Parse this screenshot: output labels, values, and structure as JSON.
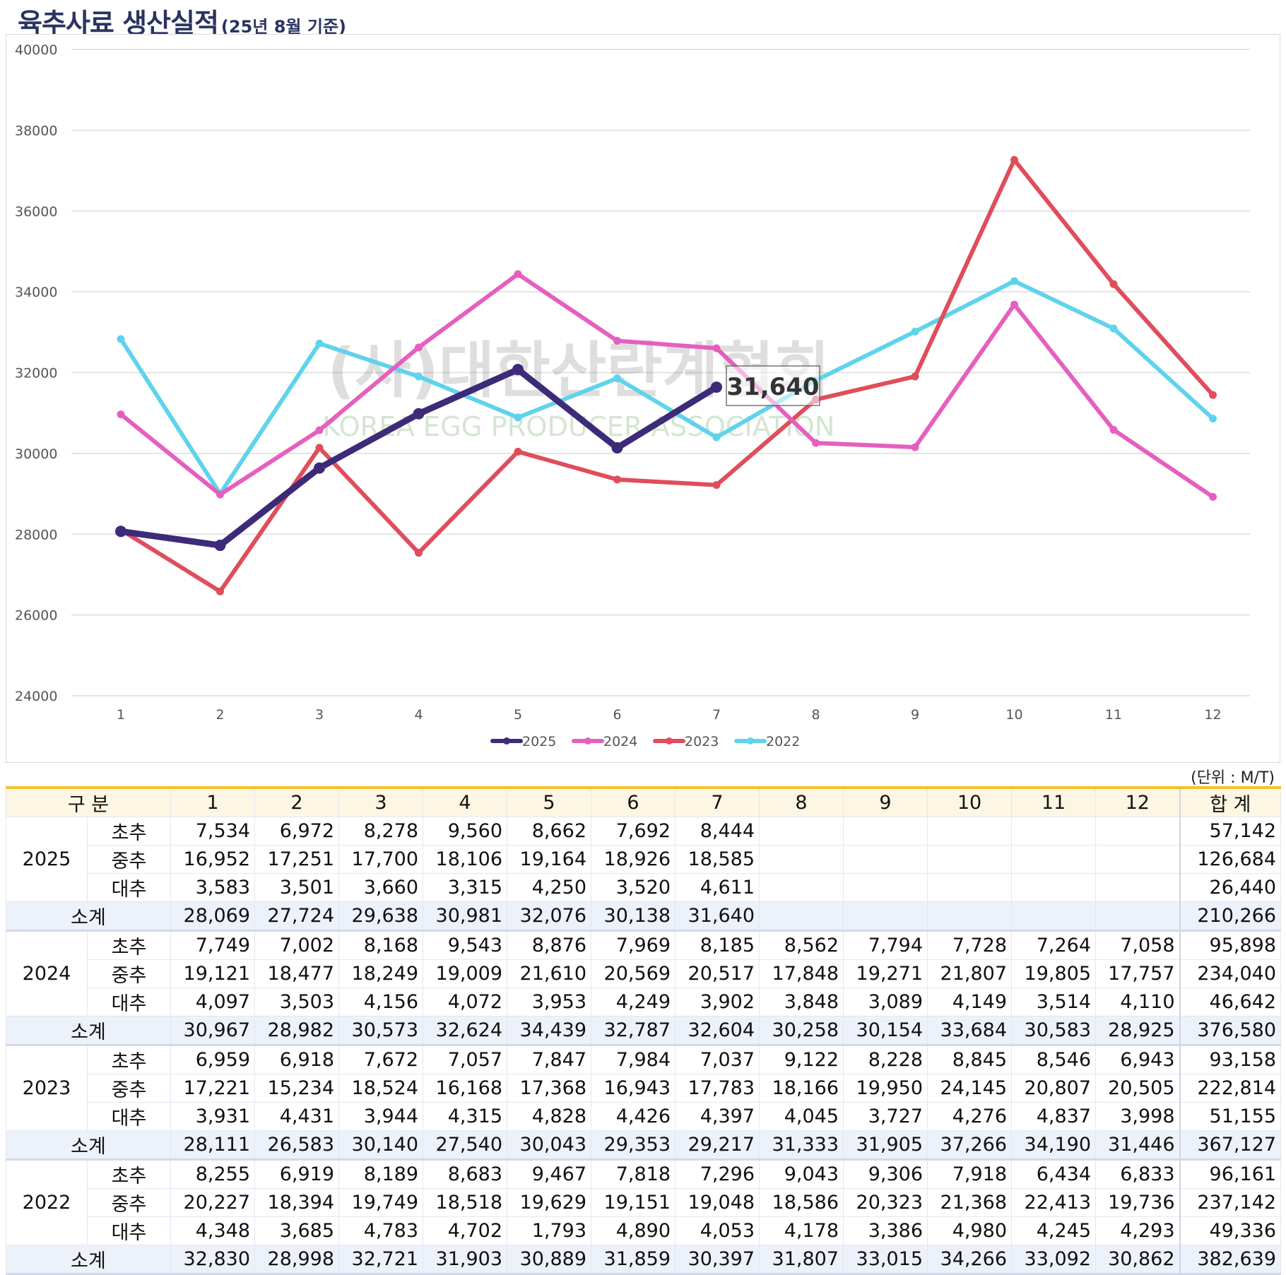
{
  "title": "육추사료 생산실적",
  "subtitle": "(25년 8월 기준)",
  "colors": {
    "2025": "#3d2a78",
    "2024": "#e55fbf",
    "2023": "#e04d5b",
    "2022": "#5fd3ec"
  },
  "chart_data": {
    "type": "line",
    "x": [
      "1",
      "2",
      "3",
      "4",
      "5",
      "6",
      "7",
      "8",
      "9",
      "10",
      "11",
      "12"
    ],
    "ylim": [
      24000,
      40000
    ],
    "yticks": [
      "24000",
      "26000",
      "28000",
      "30000",
      "32000",
      "34000",
      "36000",
      "38000",
      "40000"
    ],
    "grid": true,
    "legend": "bottom",
    "series": [
      {
        "name": "2025",
        "values": [
          28069,
          27724,
          29638,
          30981,
          32076,
          30138,
          31640,
          null,
          null,
          null,
          null,
          null
        ]
      },
      {
        "name": "2024",
        "values": [
          30967,
          28982,
          30573,
          32624,
          34439,
          32787,
          32604,
          30258,
          30154,
          33684,
          30583,
          28925
        ]
      },
      {
        "name": "2023",
        "values": [
          28111,
          26583,
          30140,
          27540,
          30043,
          29353,
          29217,
          31333,
          31905,
          37266,
          34190,
          31446
        ]
      },
      {
        "name": "2022",
        "values": [
          32830,
          28998,
          32721,
          31903,
          30889,
          31859,
          30397,
          31807,
          33015,
          34266,
          33092,
          30862
        ]
      }
    ],
    "annotation": {
      "series": "2025",
      "index": 6,
      "text": "31,640"
    },
    "watermark": {
      "line1": "(사)대한산란계협회",
      "line2": "KOREA EGG PRODUCER ASSOCIATION"
    }
  },
  "table": {
    "unit": "(단위 : M/T)",
    "header": {
      "label": "구 분",
      "months": [
        "1",
        "2",
        "3",
        "4",
        "5",
        "6",
        "7",
        "8",
        "9",
        "10",
        "11",
        "12"
      ],
      "total": "합 계"
    },
    "groups": [
      {
        "year": "2025",
        "subtotal_label": "소계",
        "rows": [
          {
            "label": "초추",
            "values": [
              "7,534",
              "6,972",
              "8,278",
              "9,560",
              "8,662",
              "7,692",
              "8,444",
              "",
              "",
              "",
              "",
              ""
            ],
            "total": "57,142"
          },
          {
            "label": "중추",
            "values": [
              "16,952",
              "17,251",
              "17,700",
              "18,106",
              "19,164",
              "18,926",
              "18,585",
              "",
              "",
              "",
              "",
              ""
            ],
            "total": "126,684"
          },
          {
            "label": "대추",
            "values": [
              "3,583",
              "3,501",
              "3,660",
              "3,315",
              "4,250",
              "3,520",
              "4,611",
              "",
              "",
              "",
              "",
              ""
            ],
            "total": "26,440"
          }
        ],
        "subtotal": {
          "values": [
            "28,069",
            "27,724",
            "29,638",
            "30,981",
            "32,076",
            "30,138",
            "31,640",
            "",
            "",
            "",
            "",
            ""
          ],
          "total": "210,266"
        }
      },
      {
        "year": "2024",
        "subtotal_label": "소계",
        "rows": [
          {
            "label": "초추",
            "values": [
              "7,749",
              "7,002",
              "8,168",
              "9,543",
              "8,876",
              "7,969",
              "8,185",
              "8,562",
              "7,794",
              "7,728",
              "7,264",
              "7,058"
            ],
            "total": "95,898"
          },
          {
            "label": "중추",
            "values": [
              "19,121",
              "18,477",
              "18,249",
              "19,009",
              "21,610",
              "20,569",
              "20,517",
              "17,848",
              "19,271",
              "21,807",
              "19,805",
              "17,757"
            ],
            "total": "234,040"
          },
          {
            "label": "대추",
            "values": [
              "4,097",
              "3,503",
              "4,156",
              "4,072",
              "3,953",
              "4,249",
              "3,902",
              "3,848",
              "3,089",
              "4,149",
              "3,514",
              "4,110"
            ],
            "total": "46,642"
          }
        ],
        "subtotal": {
          "values": [
            "30,967",
            "28,982",
            "30,573",
            "32,624",
            "34,439",
            "32,787",
            "32,604",
            "30,258",
            "30,154",
            "33,684",
            "30,583",
            "28,925"
          ],
          "total": "376,580"
        }
      },
      {
        "year": "2023",
        "subtotal_label": "소계",
        "rows": [
          {
            "label": "초추",
            "values": [
              "6,959",
              "6,918",
              "7,672",
              "7,057",
              "7,847",
              "7,984",
              "7,037",
              "9,122",
              "8,228",
              "8,845",
              "8,546",
              "6,943"
            ],
            "total": "93,158"
          },
          {
            "label": "중추",
            "values": [
              "17,221",
              "15,234",
              "18,524",
              "16,168",
              "17,368",
              "16,943",
              "17,783",
              "18,166",
              "19,950",
              "24,145",
              "20,807",
              "20,505"
            ],
            "total": "222,814"
          },
          {
            "label": "대추",
            "values": [
              "3,931",
              "4,431",
              "3,944",
              "4,315",
              "4,828",
              "4,426",
              "4,397",
              "4,045",
              "3,727",
              "4,276",
              "4,837",
              "3,998"
            ],
            "total": "51,155"
          }
        ],
        "subtotal": {
          "values": [
            "28,111",
            "26,583",
            "30,140",
            "27,540",
            "30,043",
            "29,353",
            "29,217",
            "31,333",
            "31,905",
            "37,266",
            "34,190",
            "31,446"
          ],
          "total": "367,127"
        }
      },
      {
        "year": "2022",
        "subtotal_label": "소계",
        "rows": [
          {
            "label": "초추",
            "values": [
              "8,255",
              "6,919",
              "8,189",
              "8,683",
              "9,467",
              "7,818",
              "7,296",
              "9,043",
              "9,306",
              "7,918",
              "6,434",
              "6,833"
            ],
            "total": "96,161"
          },
          {
            "label": "중추",
            "values": [
              "20,227",
              "18,394",
              "19,749",
              "18,518",
              "19,629",
              "19,151",
              "19,048",
              "18,586",
              "20,323",
              "21,368",
              "22,413",
              "19,736"
            ],
            "total": "237,142"
          },
          {
            "label": "대추",
            "values": [
              "4,348",
              "3,685",
              "4,783",
              "4,702",
              "1,793",
              "4,890",
              "4,053",
              "4,178",
              "3,386",
              "4,980",
              "4,245",
              "4,293"
            ],
            "total": "49,336"
          }
        ],
        "subtotal": {
          "values": [
            "32,830",
            "28,998",
            "32,721",
            "31,903",
            "30,889",
            "31,859",
            "30,397",
            "31,807",
            "33,015",
            "34,266",
            "33,092",
            "30,862"
          ],
          "total": "382,639"
        }
      }
    ]
  }
}
